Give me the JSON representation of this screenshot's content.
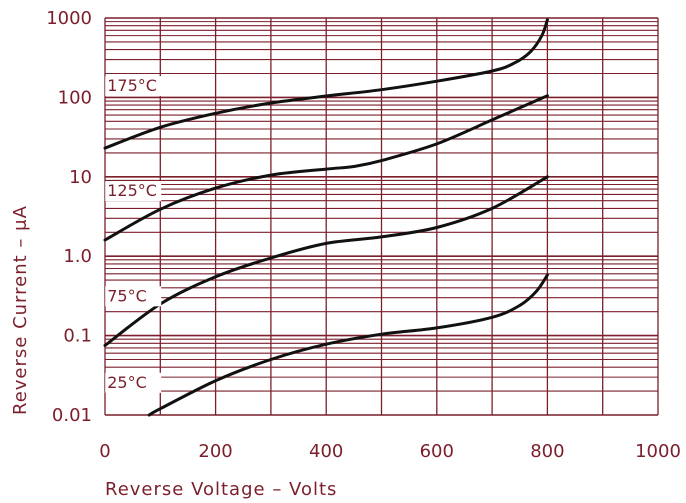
{
  "chart_data": {
    "type": "line",
    "xlabel": "Reverse Voltage – Volts",
    "ylabel": "Reverse Current – μA",
    "x_scale": "linear",
    "y_scale": "log",
    "xlim": [
      0,
      1000
    ],
    "ylim": [
      0.01,
      1000
    ],
    "x_ticks": [
      {
        "value": 0,
        "label": "0"
      },
      {
        "value": 200,
        "label": "200"
      },
      {
        "value": 400,
        "label": "400"
      },
      {
        "value": 600,
        "label": "600"
      },
      {
        "value": 800,
        "label": "800"
      },
      {
        "value": 1000,
        "label": "1000"
      }
    ],
    "y_ticks": [
      {
        "value": 0.01,
        "label": "0.01"
      },
      {
        "value": 0.1,
        "label": "0.1"
      },
      {
        "value": 1,
        "label": "1.0"
      },
      {
        "value": 10,
        "label": "10"
      },
      {
        "value": 100,
        "label": "100"
      },
      {
        "value": 1000,
        "label": "1000"
      }
    ],
    "grid": true,
    "series": [
      {
        "name": "175°C",
        "points": [
          [
            0,
            23
          ],
          [
            100,
            42
          ],
          [
            200,
            63
          ],
          [
            300,
            85
          ],
          [
            400,
            104
          ],
          [
            500,
            125
          ],
          [
            600,
            160
          ],
          [
            700,
            215
          ],
          [
            740,
            270
          ],
          [
            770,
            380
          ],
          [
            790,
            600
          ],
          [
            800,
            950
          ]
        ]
      },
      {
        "name": "125°C",
        "points": [
          [
            0,
            1.6
          ],
          [
            100,
            3.9
          ],
          [
            200,
            7.2
          ],
          [
            300,
            10.5
          ],
          [
            400,
            12.5
          ],
          [
            450,
            13.5
          ],
          [
            500,
            16
          ],
          [
            600,
            26
          ],
          [
            700,
            52
          ],
          [
            800,
            105
          ]
        ]
      },
      {
        "name": "75°C",
        "points": [
          [
            0,
            0.075
          ],
          [
            100,
            0.25
          ],
          [
            200,
            0.55
          ],
          [
            300,
            0.95
          ],
          [
            400,
            1.45
          ],
          [
            500,
            1.75
          ],
          [
            600,
            2.3
          ],
          [
            700,
            4.0
          ],
          [
            800,
            10
          ]
        ]
      },
      {
        "name": "25°C",
        "points": [
          [
            80,
            0.01
          ],
          [
            100,
            0.012
          ],
          [
            200,
            0.027
          ],
          [
            300,
            0.05
          ],
          [
            400,
            0.078
          ],
          [
            500,
            0.104
          ],
          [
            600,
            0.125
          ],
          [
            700,
            0.17
          ],
          [
            750,
            0.24
          ],
          [
            780,
            0.36
          ],
          [
            800,
            0.58
          ]
        ]
      }
    ],
    "colors": {
      "grid": "#7a1f2b",
      "curve": "#111111",
      "text": "#7a1f2b"
    }
  }
}
